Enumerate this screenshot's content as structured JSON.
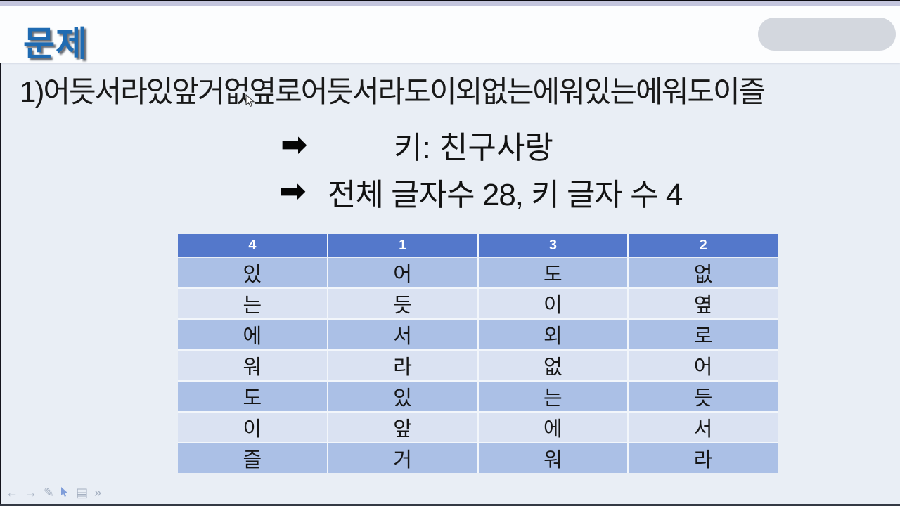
{
  "slide": {
    "title": "문제",
    "cipher_line": "1)어듯서라있앞거없옆로어듯서라도이외없는에워있는에워도이즐",
    "arrow_icon": "➡",
    "key_line": "키: 친구사랑",
    "count_line": "전체 글자수 28, 키 글자 수 4"
  },
  "table": {
    "headers": [
      "4",
      "1",
      "3",
      "2"
    ],
    "rows": [
      [
        "있",
        "어",
        "도",
        "없"
      ],
      [
        "는",
        "듯",
        "이",
        "옆"
      ],
      [
        "에",
        "서",
        "외",
        "로"
      ],
      [
        "워",
        "라",
        "없",
        "어"
      ],
      [
        "도",
        "있",
        "는",
        "듯"
      ],
      [
        "이",
        "앞",
        "에",
        "서"
      ],
      [
        "즐",
        "거",
        "워",
        "라"
      ]
    ]
  },
  "toolbar": {
    "back_icon": "←",
    "forward_icon": "→",
    "pen_icon": "✎",
    "slides_icon": "▤",
    "more_icon": "»"
  },
  "colors": {
    "top_strip": "#c3c5dd",
    "title_blue": "#1f6bb2",
    "body_bg": "#e9eef5",
    "band_white": "#fcfdfe",
    "pill_gray": "#d3d7de",
    "table_header": "#5478cb",
    "band_dark": "#abc0e6",
    "band_light": "#dae2f2",
    "pointer_blue": "#7f9dd9"
  }
}
